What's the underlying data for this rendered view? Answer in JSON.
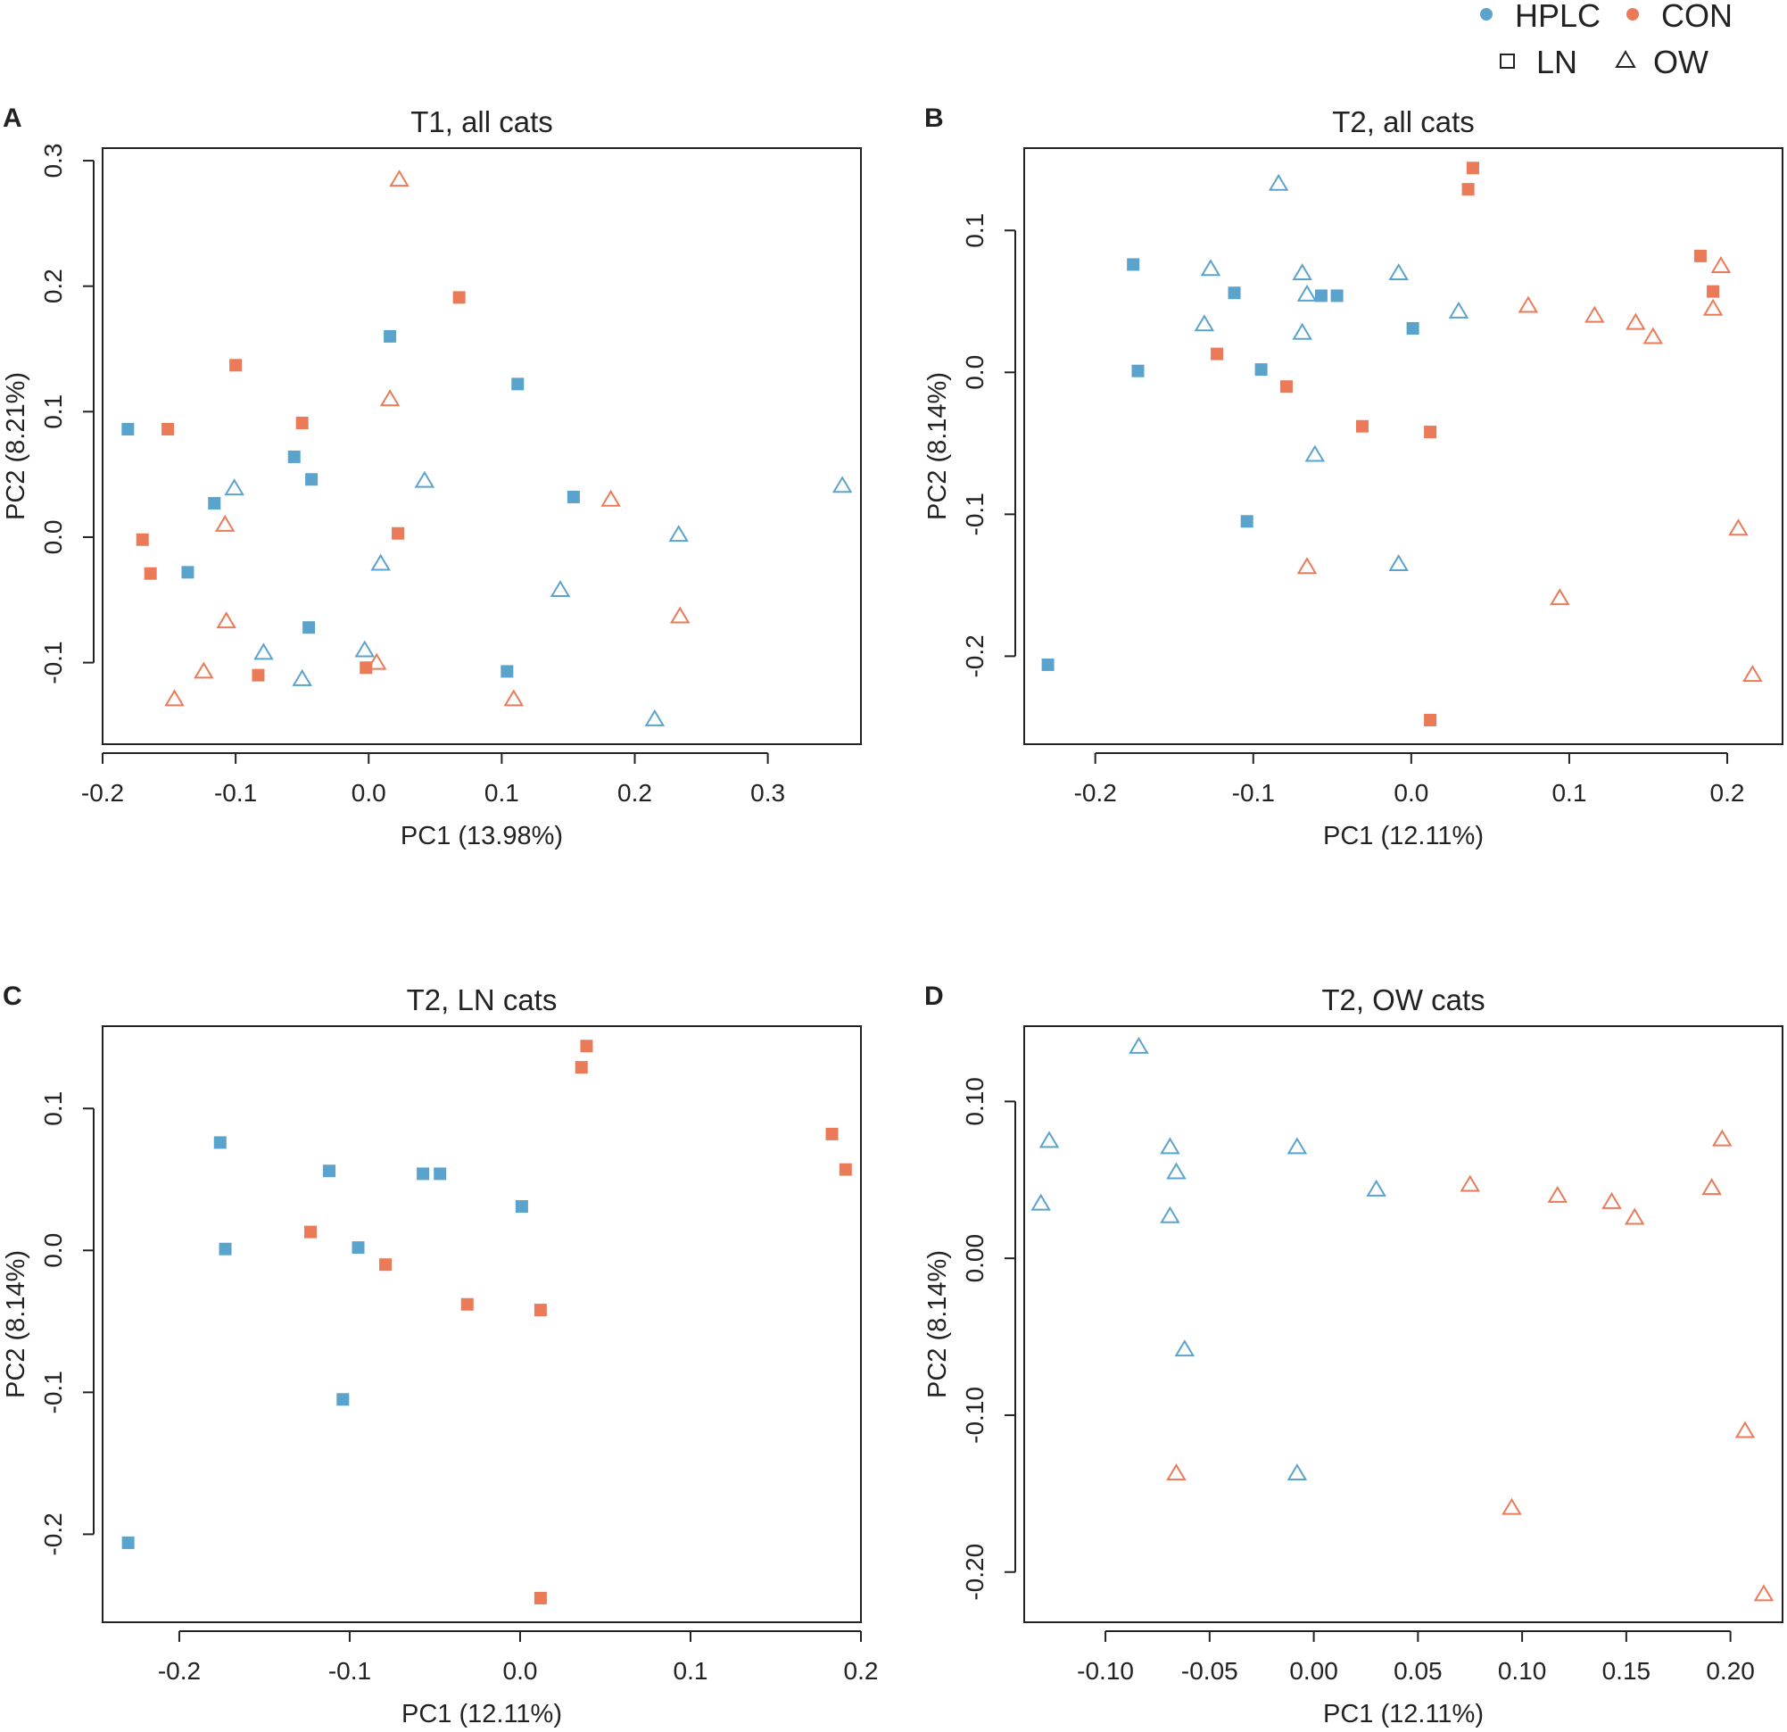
{
  "colors": {
    "HPLC": "#5aa3cc",
    "CON": "#eb7a58",
    "axis": "#222222"
  },
  "legend": {
    "color_items": [
      {
        "label": "HPLC",
        "group": "HPLC"
      },
      {
        "label": "CON",
        "group": "CON"
      }
    ],
    "shape_items": [
      {
        "label": "LN",
        "shape": "square"
      },
      {
        "label": "OW",
        "shape": "triangle"
      }
    ]
  },
  "chart_data": [
    {
      "type": "scatter",
      "letter": "A",
      "title": "T1, all cats",
      "xlabel": "PC1 (13.98%)",
      "ylabel": "PC2 (8.21%)",
      "xlim": [
        -0.2,
        0.37
      ],
      "ylim": [
        -0.165,
        0.31
      ],
      "xticks": [
        -0.2,
        -0.1,
        0.0,
        0.1,
        0.2,
        0.3
      ],
      "xtick_labels": [
        "-0.2",
        "-0.1",
        "0.0",
        "0.1",
        "0.2",
        "0.3"
      ],
      "yticks": [
        -0.1,
        0.0,
        0.1,
        0.2,
        0.3
      ],
      "ytick_labels": [
        "-0.1",
        "0.0",
        "0.1",
        "0.2",
        "0.3"
      ],
      "points": [
        {
          "x": -0.181,
          "y": 0.086,
          "group": "HPLC",
          "shape": "square"
        },
        {
          "x": 0.016,
          "y": 0.16,
          "group": "HPLC",
          "shape": "square"
        },
        {
          "x": 0.112,
          "y": 0.122,
          "group": "HPLC",
          "shape": "square"
        },
        {
          "x": -0.056,
          "y": 0.064,
          "group": "HPLC",
          "shape": "square"
        },
        {
          "x": -0.043,
          "y": 0.046,
          "group": "HPLC",
          "shape": "square"
        },
        {
          "x": -0.116,
          "y": 0.027,
          "group": "HPLC",
          "shape": "square"
        },
        {
          "x": 0.154,
          "y": 0.032,
          "group": "HPLC",
          "shape": "square"
        },
        {
          "x": -0.136,
          "y": -0.028,
          "group": "HPLC",
          "shape": "square"
        },
        {
          "x": -0.045,
          "y": -0.072,
          "group": "HPLC",
          "shape": "square"
        },
        {
          "x": 0.104,
          "y": -0.107,
          "group": "HPLC",
          "shape": "square"
        },
        {
          "x": 0.068,
          "y": 0.191,
          "group": "CON",
          "shape": "square"
        },
        {
          "x": -0.1,
          "y": 0.137,
          "group": "CON",
          "shape": "square"
        },
        {
          "x": -0.05,
          "y": 0.091,
          "group": "CON",
          "shape": "square"
        },
        {
          "x": -0.151,
          "y": 0.086,
          "group": "CON",
          "shape": "square"
        },
        {
          "x": -0.17,
          "y": -0.002,
          "group": "CON",
          "shape": "square"
        },
        {
          "x": -0.164,
          "y": -0.029,
          "group": "CON",
          "shape": "square"
        },
        {
          "x": 0.022,
          "y": 0.003,
          "group": "CON",
          "shape": "square"
        },
        {
          "x": -0.083,
          "y": -0.11,
          "group": "CON",
          "shape": "square"
        },
        {
          "x": -0.002,
          "y": -0.104,
          "group": "CON",
          "shape": "square"
        },
        {
          "x": -0.101,
          "y": 0.039,
          "group": "HPLC",
          "shape": "triangle"
        },
        {
          "x": 0.042,
          "y": 0.045,
          "group": "HPLC",
          "shape": "triangle"
        },
        {
          "x": 0.356,
          "y": 0.041,
          "group": "HPLC",
          "shape": "triangle"
        },
        {
          "x": 0.009,
          "y": -0.021,
          "group": "HPLC",
          "shape": "triangle"
        },
        {
          "x": 0.144,
          "y": -0.042,
          "group": "HPLC",
          "shape": "triangle"
        },
        {
          "x": 0.233,
          "y": 0.002,
          "group": "HPLC",
          "shape": "triangle"
        },
        {
          "x": -0.079,
          "y": -0.092,
          "group": "HPLC",
          "shape": "triangle"
        },
        {
          "x": -0.05,
          "y": -0.113,
          "group": "HPLC",
          "shape": "triangle"
        },
        {
          "x": -0.003,
          "y": -0.09,
          "group": "HPLC",
          "shape": "triangle"
        },
        {
          "x": 0.215,
          "y": -0.145,
          "group": "HPLC",
          "shape": "triangle"
        },
        {
          "x": 0.023,
          "y": 0.285,
          "group": "CON",
          "shape": "triangle"
        },
        {
          "x": 0.016,
          "y": 0.11,
          "group": "CON",
          "shape": "triangle"
        },
        {
          "x": -0.108,
          "y": 0.01,
          "group": "CON",
          "shape": "triangle"
        },
        {
          "x": 0.182,
          "y": 0.03,
          "group": "CON",
          "shape": "triangle"
        },
        {
          "x": -0.107,
          "y": -0.067,
          "group": "CON",
          "shape": "triangle"
        },
        {
          "x": 0.234,
          "y": -0.063,
          "group": "CON",
          "shape": "triangle"
        },
        {
          "x": -0.124,
          "y": -0.107,
          "group": "CON",
          "shape": "triangle"
        },
        {
          "x": -0.146,
          "y": -0.129,
          "group": "CON",
          "shape": "triangle"
        },
        {
          "x": 0.006,
          "y": -0.1,
          "group": "CON",
          "shape": "triangle"
        },
        {
          "x": 0.109,
          "y": -0.129,
          "group": "CON",
          "shape": "triangle"
        }
      ]
    },
    {
      "type": "scatter",
      "letter": "B",
      "title": "T2, all cats",
      "xlabel": "PC1 (12.11%)",
      "ylabel": "PC2 (8.14%)",
      "xlim": [
        -0.245,
        0.235
      ],
      "ylim": [
        -0.262,
        0.158
      ],
      "xticks": [
        -0.2,
        -0.1,
        0.0,
        0.1,
        0.2
      ],
      "xtick_labels": [
        "-0.2",
        "-0.1",
        "0.0",
        "0.1",
        "0.2"
      ],
      "yticks": [
        -0.2,
        -0.1,
        0.0,
        0.1
      ],
      "ytick_labels": [
        "-0.2",
        "-0.1",
        "0.0",
        "0.1"
      ],
      "points": [
        {
          "x": -0.176,
          "y": 0.076,
          "group": "HPLC",
          "shape": "square"
        },
        {
          "x": -0.112,
          "y": 0.056,
          "group": "HPLC",
          "shape": "square"
        },
        {
          "x": -0.057,
          "y": 0.054,
          "group": "HPLC",
          "shape": "square"
        },
        {
          "x": -0.047,
          "y": 0.054,
          "group": "HPLC",
          "shape": "square"
        },
        {
          "x": 0.001,
          "y": 0.031,
          "group": "HPLC",
          "shape": "square"
        },
        {
          "x": -0.173,
          "y": 0.001,
          "group": "HPLC",
          "shape": "square"
        },
        {
          "x": -0.095,
          "y": 0.002,
          "group": "HPLC",
          "shape": "square"
        },
        {
          "x": -0.104,
          "y": -0.105,
          "group": "HPLC",
          "shape": "square"
        },
        {
          "x": -0.23,
          "y": -0.206,
          "group": "HPLC",
          "shape": "square"
        },
        {
          "x": 0.039,
          "y": 0.144,
          "group": "CON",
          "shape": "square"
        },
        {
          "x": 0.036,
          "y": 0.129,
          "group": "CON",
          "shape": "square"
        },
        {
          "x": 0.183,
          "y": 0.082,
          "group": "CON",
          "shape": "square"
        },
        {
          "x": 0.191,
          "y": 0.057,
          "group": "CON",
          "shape": "square"
        },
        {
          "x": -0.123,
          "y": 0.013,
          "group": "CON",
          "shape": "square"
        },
        {
          "x": -0.079,
          "y": -0.01,
          "group": "CON",
          "shape": "square"
        },
        {
          "x": -0.031,
          "y": -0.038,
          "group": "CON",
          "shape": "square"
        },
        {
          "x": 0.012,
          "y": -0.042,
          "group": "CON",
          "shape": "square"
        },
        {
          "x": 0.012,
          "y": -0.245,
          "group": "CON",
          "shape": "square"
        },
        {
          "x": -0.084,
          "y": 0.133,
          "group": "HPLC",
          "shape": "triangle"
        },
        {
          "x": -0.127,
          "y": 0.073,
          "group": "HPLC",
          "shape": "triangle"
        },
        {
          "x": -0.069,
          "y": 0.07,
          "group": "HPLC",
          "shape": "triangle"
        },
        {
          "x": -0.008,
          "y": 0.07,
          "group": "HPLC",
          "shape": "triangle"
        },
        {
          "x": -0.066,
          "y": 0.055,
          "group": "HPLC",
          "shape": "triangle"
        },
        {
          "x": 0.03,
          "y": 0.043,
          "group": "HPLC",
          "shape": "triangle"
        },
        {
          "x": -0.131,
          "y": 0.034,
          "group": "HPLC",
          "shape": "triangle"
        },
        {
          "x": -0.069,
          "y": 0.028,
          "group": "HPLC",
          "shape": "triangle"
        },
        {
          "x": -0.061,
          "y": -0.058,
          "group": "HPLC",
          "shape": "triangle"
        },
        {
          "x": -0.008,
          "y": -0.135,
          "group": "HPLC",
          "shape": "triangle"
        },
        {
          "x": 0.196,
          "y": 0.075,
          "group": "CON",
          "shape": "triangle"
        },
        {
          "x": 0.074,
          "y": 0.047,
          "group": "CON",
          "shape": "triangle"
        },
        {
          "x": 0.191,
          "y": 0.045,
          "group": "CON",
          "shape": "triangle"
        },
        {
          "x": 0.116,
          "y": 0.04,
          "group": "CON",
          "shape": "triangle"
        },
        {
          "x": 0.142,
          "y": 0.035,
          "group": "CON",
          "shape": "triangle"
        },
        {
          "x": 0.153,
          "y": 0.025,
          "group": "CON",
          "shape": "triangle"
        },
        {
          "x": -0.066,
          "y": -0.137,
          "group": "CON",
          "shape": "triangle"
        },
        {
          "x": 0.094,
          "y": -0.159,
          "group": "CON",
          "shape": "triangle"
        },
        {
          "x": 0.207,
          "y": -0.11,
          "group": "CON",
          "shape": "triangle"
        },
        {
          "x": 0.216,
          "y": -0.213,
          "group": "CON",
          "shape": "triangle"
        }
      ]
    },
    {
      "type": "scatter",
      "letter": "C",
      "title": "T2, LN cats",
      "xlabel": "PC1 (12.11%)",
      "ylabel": "PC2 (8.14%)",
      "xlim": [
        -0.245,
        0.2
      ],
      "ylim": [
        -0.262,
        0.158
      ],
      "xticks": [
        -0.2,
        -0.1,
        0.0,
        0.1,
        0.2
      ],
      "xtick_labels": [
        "-0.2",
        "-0.1",
        "0.0",
        "0.1",
        "0.2"
      ],
      "yticks": [
        -0.2,
        -0.1,
        0.0,
        0.1
      ],
      "ytick_labels": [
        "-0.2",
        "-0.1",
        "0.0",
        "0.1"
      ],
      "points": [
        {
          "x": -0.176,
          "y": 0.076,
          "group": "HPLC",
          "shape": "square"
        },
        {
          "x": -0.112,
          "y": 0.056,
          "group": "HPLC",
          "shape": "square"
        },
        {
          "x": -0.057,
          "y": 0.054,
          "group": "HPLC",
          "shape": "square"
        },
        {
          "x": -0.047,
          "y": 0.054,
          "group": "HPLC",
          "shape": "square"
        },
        {
          "x": 0.001,
          "y": 0.031,
          "group": "HPLC",
          "shape": "square"
        },
        {
          "x": -0.173,
          "y": 0.001,
          "group": "HPLC",
          "shape": "square"
        },
        {
          "x": -0.095,
          "y": 0.002,
          "group": "HPLC",
          "shape": "square"
        },
        {
          "x": -0.104,
          "y": -0.105,
          "group": "HPLC",
          "shape": "square"
        },
        {
          "x": -0.23,
          "y": -0.206,
          "group": "HPLC",
          "shape": "square"
        },
        {
          "x": 0.039,
          "y": 0.144,
          "group": "CON",
          "shape": "square"
        },
        {
          "x": 0.036,
          "y": 0.129,
          "group": "CON",
          "shape": "square"
        },
        {
          "x": 0.183,
          "y": 0.082,
          "group": "CON",
          "shape": "square"
        },
        {
          "x": 0.191,
          "y": 0.057,
          "group": "CON",
          "shape": "square"
        },
        {
          "x": -0.123,
          "y": 0.013,
          "group": "CON",
          "shape": "square"
        },
        {
          "x": -0.079,
          "y": -0.01,
          "group": "CON",
          "shape": "square"
        },
        {
          "x": -0.031,
          "y": -0.038,
          "group": "CON",
          "shape": "square"
        },
        {
          "x": 0.012,
          "y": -0.042,
          "group": "CON",
          "shape": "square"
        },
        {
          "x": 0.012,
          "y": -0.245,
          "group": "CON",
          "shape": "square"
        }
      ]
    },
    {
      "type": "scatter",
      "letter": "D",
      "title": "T2, OW cats",
      "xlabel": "PC1 (12.11%)",
      "ylabel": "PC2 (8.14%)",
      "xlim": [
        -0.139,
        0.225
      ],
      "ylim": [
        -0.232,
        0.148
      ],
      "xticks": [
        -0.1,
        -0.05,
        0.0,
        0.05,
        0.1,
        0.15,
        0.2
      ],
      "xtick_labels": [
        "-0.10",
        "-0.05",
        "0.00",
        "0.05",
        "0.10",
        "0.15",
        "0.20"
      ],
      "yticks": [
        -0.2,
        -0.1,
        0.0,
        0.1
      ],
      "ytick_labels": [
        "-0.20",
        "-0.10",
        "0.00",
        "0.10"
      ],
      "points": [
        {
          "x": -0.084,
          "y": 0.135,
          "group": "HPLC",
          "shape": "triangle"
        },
        {
          "x": -0.127,
          "y": 0.075,
          "group": "HPLC",
          "shape": "triangle"
        },
        {
          "x": -0.069,
          "y": 0.071,
          "group": "HPLC",
          "shape": "triangle"
        },
        {
          "x": -0.008,
          "y": 0.071,
          "group": "HPLC",
          "shape": "triangle"
        },
        {
          "x": -0.066,
          "y": 0.055,
          "group": "HPLC",
          "shape": "triangle"
        },
        {
          "x": 0.03,
          "y": 0.044,
          "group": "HPLC",
          "shape": "triangle"
        },
        {
          "x": -0.131,
          "y": 0.035,
          "group": "HPLC",
          "shape": "triangle"
        },
        {
          "x": -0.069,
          "y": 0.027,
          "group": "HPLC",
          "shape": "triangle"
        },
        {
          "x": -0.062,
          "y": -0.058,
          "group": "HPLC",
          "shape": "triangle"
        },
        {
          "x": -0.008,
          "y": -0.137,
          "group": "HPLC",
          "shape": "triangle"
        },
        {
          "x": 0.196,
          "y": 0.076,
          "group": "CON",
          "shape": "triangle"
        },
        {
          "x": 0.075,
          "y": 0.047,
          "group": "CON",
          "shape": "triangle"
        },
        {
          "x": 0.191,
          "y": 0.045,
          "group": "CON",
          "shape": "triangle"
        },
        {
          "x": 0.117,
          "y": 0.04,
          "group": "CON",
          "shape": "triangle"
        },
        {
          "x": 0.143,
          "y": 0.036,
          "group": "CON",
          "shape": "triangle"
        },
        {
          "x": 0.154,
          "y": 0.026,
          "group": "CON",
          "shape": "triangle"
        },
        {
          "x": -0.066,
          "y": -0.137,
          "group": "CON",
          "shape": "triangle"
        },
        {
          "x": 0.095,
          "y": -0.159,
          "group": "CON",
          "shape": "triangle"
        },
        {
          "x": 0.207,
          "y": -0.11,
          "group": "CON",
          "shape": "triangle"
        },
        {
          "x": 0.216,
          "y": -0.214,
          "group": "CON",
          "shape": "triangle"
        }
      ]
    }
  ]
}
